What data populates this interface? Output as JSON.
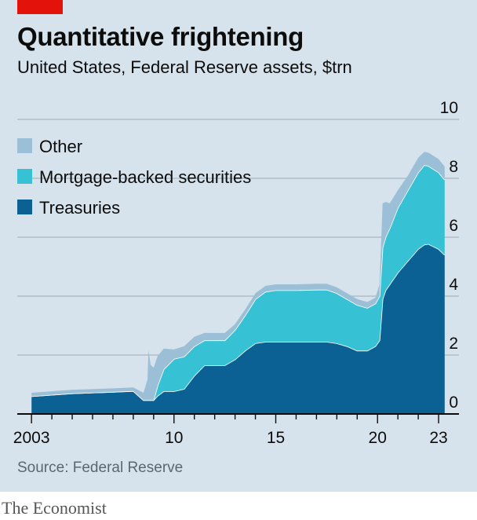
{
  "brand_bar_color": "#e3120b",
  "title": "Quantitative frightening",
  "subtitle": "United States, Federal Reserve assets, $trn",
  "source": "Source: Federal Reserve",
  "brand": "The Economist",
  "chart_data": {
    "type": "area",
    "stacked": true,
    "title": "Quantitative frightening",
    "subtitle": "United States, Federal Reserve assets, $trn",
    "xlabel": "",
    "ylabel": "",
    "ylim": [
      0,
      10
    ],
    "xlim": [
      2002.3,
      2024.0
    ],
    "yticks": [
      0,
      2,
      4,
      6,
      8,
      10
    ],
    "xticks": [
      {
        "value": 2003.0,
        "label": "2003"
      },
      {
        "value": 2010.0,
        "label": "10"
      },
      {
        "value": 2015.0,
        "label": "15"
      },
      {
        "value": 2020.0,
        "label": "20"
      },
      {
        "value": 2023.0,
        "label": "23"
      }
    ],
    "grid": true,
    "legend_position": "top-left",
    "x": [
      2003.0,
      2005.0,
      2007.0,
      2008.0,
      2008.5,
      2008.7,
      2008.75,
      2008.85,
      2009.0,
      2009.2,
      2009.5,
      2010.0,
      2010.5,
      2011.0,
      2011.5,
      2012.0,
      2012.5,
      2013.0,
      2013.5,
      2014.0,
      2014.5,
      2015.0,
      2016.0,
      2017.0,
      2017.5,
      2018.0,
      2018.5,
      2019.0,
      2019.5,
      2019.9,
      2020.1,
      2020.25,
      2020.4,
      2020.6,
      2021.0,
      2021.5,
      2022.0,
      2022.3,
      2022.5,
      2023.0,
      2023.3
    ],
    "series": [
      {
        "name": "Treasuries",
        "color": "#0b6194",
        "values": [
          0.6,
          0.7,
          0.75,
          0.78,
          0.47,
          0.47,
          0.47,
          0.47,
          0.47,
          0.62,
          0.77,
          0.77,
          0.85,
          1.3,
          1.65,
          1.65,
          1.65,
          1.85,
          2.15,
          2.4,
          2.45,
          2.45,
          2.45,
          2.45,
          2.45,
          2.4,
          2.3,
          2.15,
          2.15,
          2.3,
          2.5,
          3.9,
          4.2,
          4.4,
          4.8,
          5.2,
          5.6,
          5.75,
          5.77,
          5.6,
          5.4
        ]
      },
      {
        "name": "Mortgage-backed securities",
        "color": "#36c2d4",
        "values": [
          0,
          0,
          0,
          0,
          0,
          0,
          0,
          0,
          0,
          0.35,
          0.75,
          1.1,
          1.1,
          1.0,
          0.85,
          0.85,
          0.85,
          1.0,
          1.2,
          1.5,
          1.7,
          1.75,
          1.75,
          1.77,
          1.77,
          1.7,
          1.6,
          1.55,
          1.45,
          1.45,
          1.5,
          1.75,
          1.8,
          1.9,
          2.2,
          2.4,
          2.6,
          2.7,
          2.65,
          2.6,
          2.55
        ]
      },
      {
        "name": "Other",
        "color": "#9bbfd6",
        "values": [
          0.12,
          0.12,
          0.12,
          0.12,
          0.25,
          0.7,
          1.7,
          1.2,
          1.1,
          1.0,
          0.7,
          0.32,
          0.35,
          0.32,
          0.25,
          0.25,
          0.25,
          0.2,
          0.2,
          0.2,
          0.2,
          0.2,
          0.2,
          0.2,
          0.2,
          0.2,
          0.2,
          0.2,
          0.2,
          0.2,
          0.4,
          1.5,
          1.2,
          0.85,
          0.6,
          0.5,
          0.5,
          0.45,
          0.45,
          0.45,
          0.45
        ]
      }
    ]
  }
}
